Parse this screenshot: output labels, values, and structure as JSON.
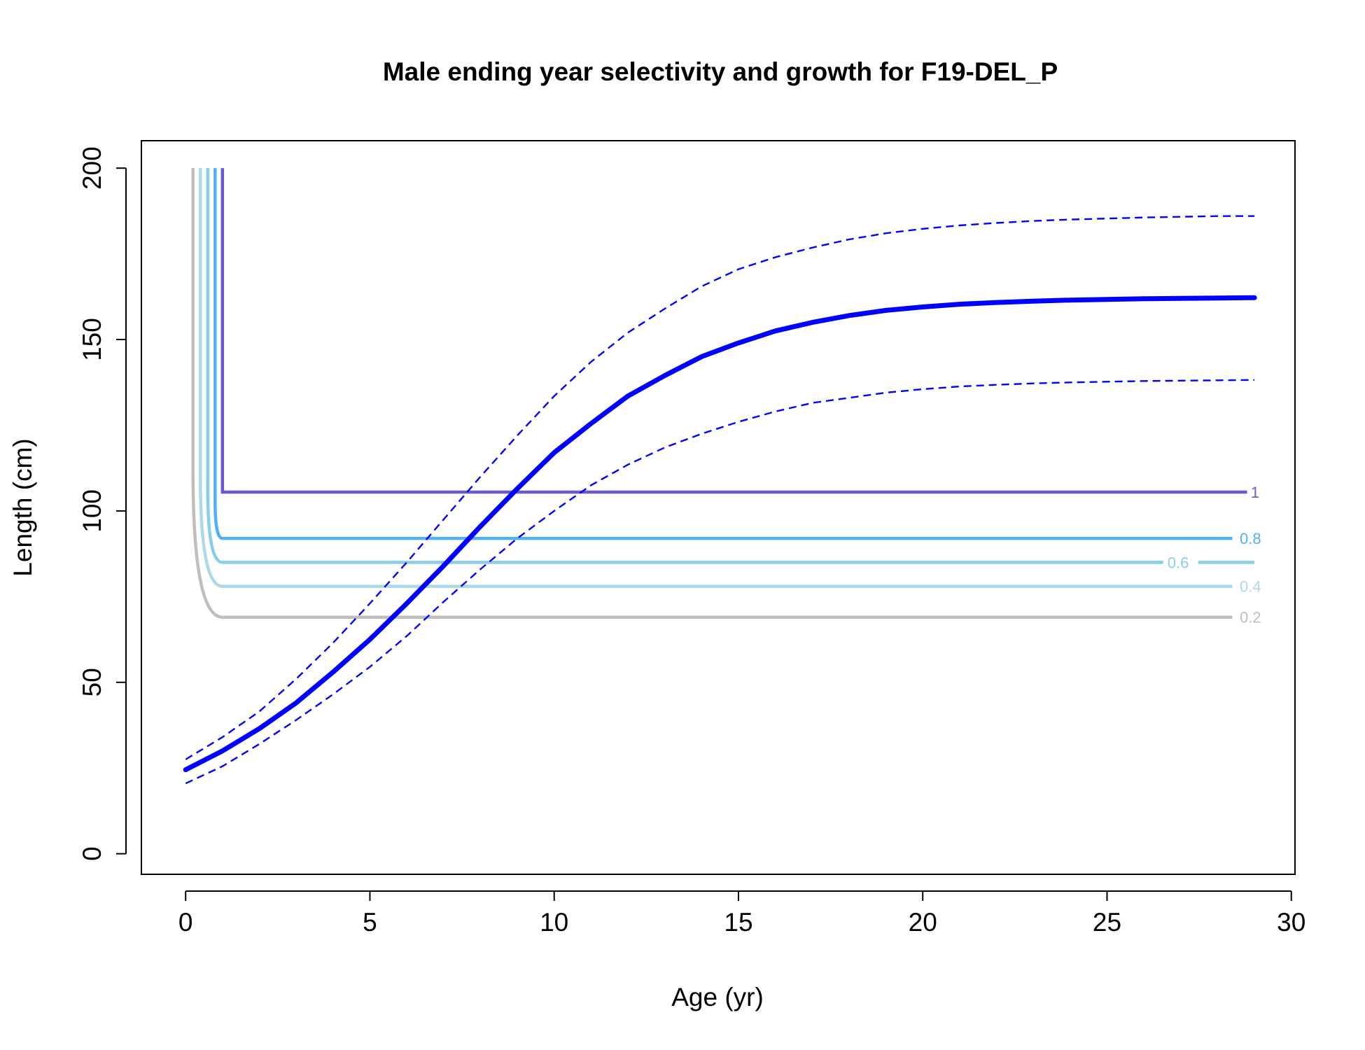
{
  "chart_data": {
    "type": "line",
    "title": "Male ending year selectivity and growth for F19-DEL_P",
    "xlabel": "Age (yr)",
    "ylabel": "Length (cm)",
    "xlim": [
      -1.2,
      30.1
    ],
    "ylim": [
      -6,
      208
    ],
    "x_ticks": [
      "0",
      "5",
      "10",
      "15",
      "20",
      "25",
      "30"
    ],
    "y_ticks": [
      "0",
      "50",
      "100",
      "150",
      "200"
    ],
    "growth_mean": {
      "name": "mean length at age",
      "color": "#0000ff",
      "x": [
        0,
        1,
        2,
        3,
        4,
        5,
        6,
        7,
        8,
        9,
        10,
        11,
        12,
        13,
        14,
        15,
        16,
        17,
        18,
        19,
        20,
        21,
        22,
        23,
        24,
        25,
        26,
        27,
        28,
        29
      ],
      "y": [
        24.5,
        30,
        36.5,
        44,
        53,
        62.5,
        73,
        84,
        95.5,
        106.5,
        117,
        125.5,
        133.5,
        139.5,
        145,
        149,
        152.5,
        155,
        157,
        158.5,
        159.5,
        160.3,
        160.8,
        161.2,
        161.5,
        161.7,
        161.9,
        162,
        162.1,
        162.2
      ]
    },
    "growth_upper": {
      "name": "upper interval",
      "color": "#0000ff",
      "x": [
        0,
        1,
        2,
        3,
        4,
        5,
        6,
        7,
        8,
        9,
        10,
        11,
        12,
        13,
        14,
        15,
        16,
        17,
        18,
        19,
        20,
        21,
        22,
        23,
        24,
        25,
        26,
        27,
        28,
        29
      ],
      "y": [
        27.5,
        34,
        41.5,
        51,
        61.5,
        73,
        85,
        97.5,
        110,
        122,
        133.5,
        143.5,
        152,
        159,
        165.5,
        170.5,
        174,
        176.8,
        179.2,
        181,
        182.3,
        183.3,
        184,
        184.6,
        185,
        185.3,
        185.6,
        185.8,
        186,
        186
      ]
    },
    "growth_lower": {
      "name": "lower interval",
      "color": "#0000ff",
      "x": [
        0,
        1,
        2,
        3,
        4,
        5,
        6,
        7,
        8,
        9,
        10,
        11,
        12,
        13,
        14,
        15,
        16,
        17,
        18,
        19,
        20,
        21,
        22,
        23,
        24,
        25,
        26,
        27,
        28,
        29
      ],
      "y": [
        20.5,
        25.5,
        32,
        39,
        46.5,
        54.5,
        63.5,
        73.5,
        83,
        92,
        100,
        107.5,
        113.5,
        118.5,
        122.5,
        126,
        129,
        131.5,
        133,
        134.5,
        135.5,
        136.3,
        136.8,
        137.2,
        137.5,
        137.7,
        137.9,
        138,
        138.1,
        138.2
      ]
    },
    "selectivity_contours": [
      {
        "label": "0.2",
        "level": 0.2,
        "color": "#bebebe",
        "age_x": 0.2,
        "length_y": 69,
        "end_x": 28.4,
        "label_x": 28.6
      },
      {
        "label": "0.4",
        "level": 0.4,
        "color": "#add8e6",
        "age_x": 0.4,
        "length_y": 78,
        "end_x": 28.4,
        "label_x": 28.6
      },
      {
        "label": "0.6",
        "level": 0.6,
        "color": "#87ceeb",
        "age_x": 0.6,
        "length_y": 85,
        "end_x": 29.0,
        "label_x": 26.6
      },
      {
        "label": "0.8",
        "level": 0.8,
        "color": "#4fb0f4",
        "age_x": 0.8,
        "length_y": 92,
        "end_x": 28.4,
        "label_x": 28.6
      },
      {
        "label": "1",
        "level": 1.0,
        "color": "#6a5acd",
        "age_x": 1.0,
        "length_y": 105.5,
        "end_x": 28.8,
        "label_x": 28.9
      }
    ],
    "contour_top_y": 200,
    "grid": false,
    "legend": "none"
  }
}
